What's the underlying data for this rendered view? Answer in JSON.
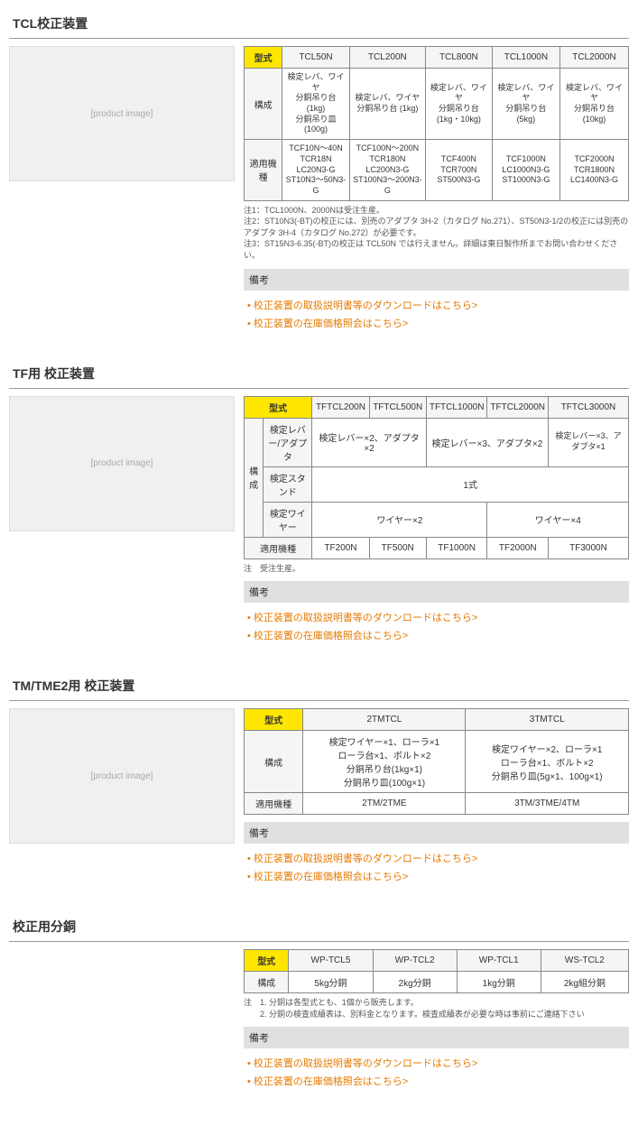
{
  "colors": {
    "yellow_header": "#ffe600",
    "link_color": "#e67a00",
    "border_color": "#888888",
    "grey_header": "#f5f5f5",
    "remark_bg": "#e0e0e0"
  },
  "sections": [
    {
      "title": "TCL校正装置",
      "image_alt": "[product image]",
      "table": {
        "header_label": "型式",
        "models": [
          "TCL50N",
          "TCL200N",
          "TCL800N",
          "TCL1000N",
          "TCL2000N"
        ],
        "rows": [
          {
            "label": "構成",
            "cells": [
              "検定レバ、ワイヤ\n分銅吊り台 (1kg)\n分銅吊り皿 (100g)",
              "検定レバ、ワイヤ\n分銅吊り台 (1kg)",
              "検定レバ、ワイヤ\n分銅吊り台\n(1kg・10kg)",
              "検定レバ、ワイヤ\n分銅吊り台 (5kg)",
              "検定レバ、ワイヤ\n分銅吊り台 (10kg)"
            ]
          },
          {
            "label": "適用機種",
            "cells": [
              "TCF10N～40N\nTCR18N\nLC20N3-G\nST10N3～50N3-G",
              "TCF100N～200N\nTCR180N\nLC200N3-G\nST100N3～200N3-G",
              "TCF400N\nTCR700N\nST500N3-G",
              "TCF1000N\nLC1000N3-G\nST1000N3-G",
              "TCF2000N\nTCR1800N\nLC1400N3-G"
            ]
          }
        ]
      },
      "notes": [
        "注1：TCL1000N、2000Nは受注生産。",
        "注2：ST10N3(-BT)の校正には、別売のアダプタ 3H-2（カタログ No.271）、ST50N3-1/2の校正には別売のアダプタ 3H-4（カタログ No.272）が必要です。",
        "注3：ST15N3-6.35(-BT)の校正は TCL50N では行えません。詳細は東日製作所までお問い合わせください。"
      ],
      "remark_label": "備考",
      "link1": "校正装置の取扱説明書等のダウンロードはこちら>",
      "link2": "校正装置の在庫価格照会はこちら>"
    },
    {
      "title": "TF用 校正装置",
      "image_alt": "[product image]",
      "tf_table": {
        "header_label": "型式",
        "models": [
          "TFTCL200N",
          "TFTCL500N",
          "TFTCL1000N",
          "TFTCL2000N",
          "TFTCL3000N"
        ],
        "kousei_label": "構成",
        "sub_rows": [
          {
            "label": "検定レバー/アダプタ",
            "spans": [
              {
                "text": "検定レバー×2、アダプタ×2",
                "colspan": 2
              },
              {
                "text": "検定レバー×3、アダプタ×2",
                "colspan": 2
              },
              {
                "text": "検定レバー×3、アダプタ×1",
                "colspan": 1
              }
            ]
          },
          {
            "label": "検定スタンド",
            "spans": [
              {
                "text": "1式",
                "colspan": 5
              }
            ]
          },
          {
            "label": "検定ワイヤー",
            "spans": [
              {
                "text": "ワイヤー×2",
                "colspan": 3
              },
              {
                "text": "ワイヤー×4",
                "colspan": 2
              }
            ]
          }
        ],
        "applicable_label": "適用機種",
        "applicable": [
          "TF200N",
          "TF500N",
          "TF1000N",
          "TF2000N",
          "TF3000N"
        ]
      },
      "notes": [
        "注　受注生産。"
      ],
      "remark_label": "備考",
      "link1": "校正装置の取扱説明書等のダウンロードはこちら>",
      "link2": "校正装置の在庫価格照会はこちら>"
    },
    {
      "title": "TM/TME2用 校正装置",
      "image_alt": "[product image]",
      "tm_table": {
        "header_label": "型式",
        "models": [
          "2TMTCL",
          "3TMTCL"
        ],
        "rows": [
          {
            "label": "構成",
            "cells": [
              "検定ワイヤー×1、ローラ×1\nローラ台×1、ボルト×2\n分銅吊り台(1kg×1)\n分銅吊り皿(100g×1)",
              "検定ワイヤー×2、ローラ×1\nローラ台×1、ボルト×2\n分銅吊り皿(5g×1、100g×1)"
            ]
          },
          {
            "label": "適用機種",
            "cells": [
              "2TM/2TME",
              "3TM/3TME/4TM"
            ]
          }
        ]
      },
      "notes": [],
      "remark_label": "備考",
      "link1": "校正装置の取扱説明書等のダウンロードはこちら>",
      "link2": "校正装置の在庫価格照会はこちら>"
    },
    {
      "title": "校正用分銅",
      "image_alt": "",
      "wp_table": {
        "header_label": "型式",
        "models": [
          "WP-TCL5",
          "WP-TCL2",
          "WP-TCL1",
          "WS-TCL2"
        ],
        "row_label": "構成",
        "cells": [
          "5kg分銅",
          "2kg分銅",
          "1kg分銅",
          "2kg組分銅"
        ]
      },
      "notes": [
        "注　1. 分銅は各型式とも、1個から販売します。",
        "　　2. 分銅の検査成績表は、別料金となります。検査成績表が必要な時は事前にご連絡下さい"
      ],
      "remark_label": "備考",
      "link1": "校正装置の取扱説明書等のダウンロードはこちら>",
      "link2": "校正装置の在庫価格照会はこちら>"
    }
  ]
}
